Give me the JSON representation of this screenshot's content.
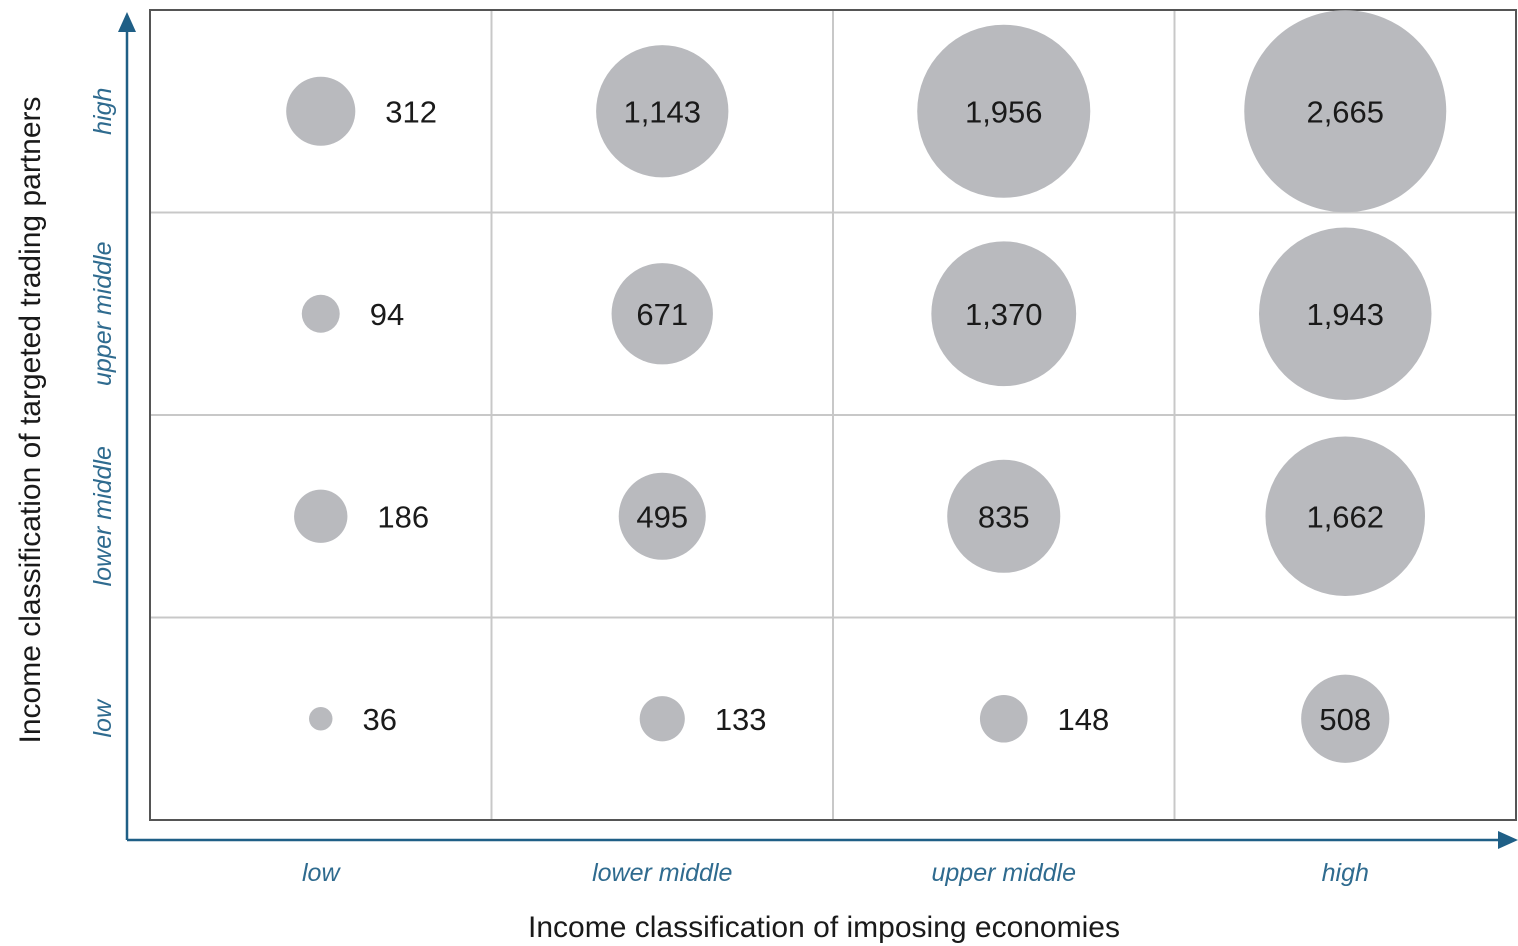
{
  "chart_data": {
    "type": "bubble-matrix",
    "xlabel": "Income classification of imposing economies",
    "ylabel": "Income classification of targeted trading partners",
    "x_categories": [
      "low",
      "lower middle",
      "upper middle",
      "high"
    ],
    "y_categories": [
      "low",
      "lower middle",
      "upper middle",
      "high"
    ],
    "cells": [
      {
        "x": "low",
        "y": "high",
        "value": 312,
        "label": "312"
      },
      {
        "x": "lower middle",
        "y": "high",
        "value": 1143,
        "label": "1,143"
      },
      {
        "x": "upper middle",
        "y": "high",
        "value": 1956,
        "label": "1,956"
      },
      {
        "x": "high",
        "y": "high",
        "value": 2665,
        "label": "2,665"
      },
      {
        "x": "low",
        "y": "upper middle",
        "value": 94,
        "label": "94"
      },
      {
        "x": "lower middle",
        "y": "upper middle",
        "value": 671,
        "label": "671"
      },
      {
        "x": "upper middle",
        "y": "upper middle",
        "value": 1370,
        "label": "1,370"
      },
      {
        "x": "high",
        "y": "upper middle",
        "value": 1943,
        "label": "1,943"
      },
      {
        "x": "low",
        "y": "lower middle",
        "value": 186,
        "label": "186"
      },
      {
        "x": "lower middle",
        "y": "lower middle",
        "value": 495,
        "label": "495"
      },
      {
        "x": "upper middle",
        "y": "lower middle",
        "value": 835,
        "label": "835"
      },
      {
        "x": "high",
        "y": "lower middle",
        "value": 1662,
        "label": "1,662"
      },
      {
        "x": "low",
        "y": "low",
        "value": 36,
        "label": "36"
      },
      {
        "x": "lower middle",
        "y": "low",
        "value": 133,
        "label": "133"
      },
      {
        "x": "upper middle",
        "y": "low",
        "value": 148,
        "label": "148"
      },
      {
        "x": "high",
        "y": "low",
        "value": 508,
        "label": "508"
      }
    ],
    "grid": true,
    "colors": {
      "bubble": "#b9babe",
      "category_label": "#2f6b8f",
      "axis": "#1f5f86",
      "grid": "#c8c8c8",
      "frame": "#555555"
    }
  }
}
